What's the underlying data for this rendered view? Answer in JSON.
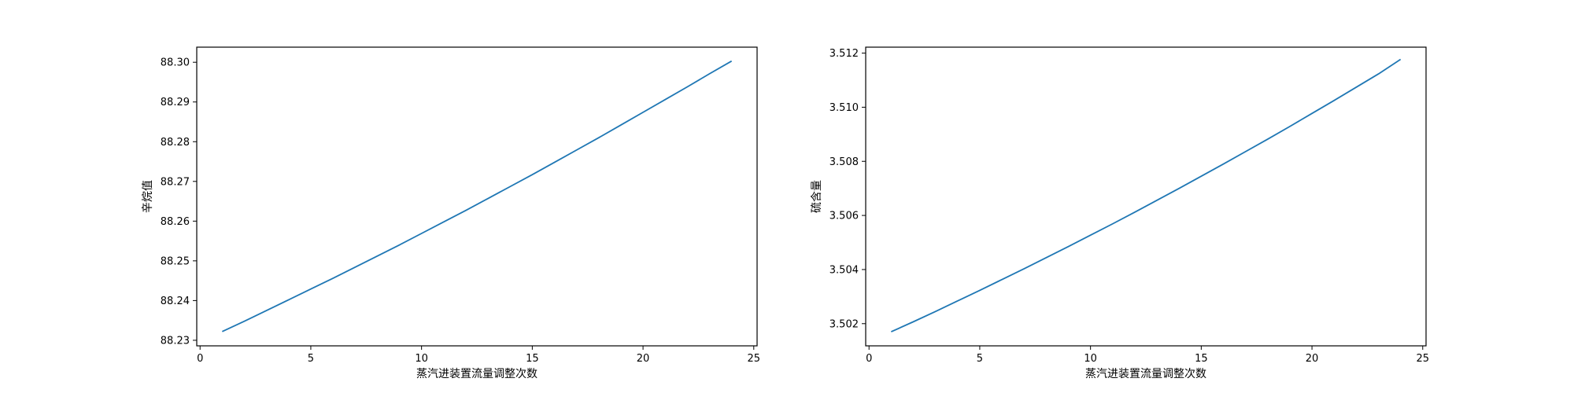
{
  "chart_data": [
    {
      "type": "line",
      "title": "",
      "xlabel": "蒸汽进装置流量调整次数",
      "ylabel": "辛烷值",
      "xlim": [
        -0.15,
        25.15
      ],
      "ylim": [
        88.2286,
        88.3038
      ],
      "xticks": [
        0,
        5,
        10,
        15,
        20,
        25
      ],
      "xtick_labels": [
        "0",
        "5",
        "10",
        "15",
        "20",
        "25"
      ],
      "yticks": [
        88.23,
        88.24,
        88.25,
        88.26,
        88.27,
        88.28,
        88.29,
        88.3
      ],
      "ytick_labels": [
        "88.23",
        "88.24",
        "88.25",
        "88.26",
        "88.27",
        "88.28",
        "88.29",
        "88.30"
      ],
      "grid": false,
      "series": [
        {
          "color": "#1f77b4",
          "x": [
            1,
            2,
            3,
            4,
            5,
            6,
            7,
            8,
            9,
            10,
            11,
            12,
            13,
            14,
            15,
            16,
            17,
            18,
            19,
            20,
            21,
            22,
            23,
            24
          ],
          "values": [
            88.2322,
            88.2348,
            88.2375,
            88.2402,
            88.2429,
            88.2456,
            88.2484,
            88.2512,
            88.254,
            88.2569,
            88.2598,
            88.2627,
            88.2657,
            88.2687,
            88.2717,
            88.2748,
            88.2779,
            88.281,
            88.2842,
            88.2874,
            88.2906,
            88.2938,
            88.2971,
            88.3003
          ]
        }
      ]
    },
    {
      "type": "line",
      "title": "",
      "xlabel": "蒸汽进装置流量调整次数",
      "ylabel": "硫含量",
      "xlim": [
        -0.15,
        25.15
      ],
      "ylim": [
        3.50118,
        3.51222
      ],
      "xticks": [
        0,
        5,
        10,
        15,
        20,
        25
      ],
      "xtick_labels": [
        "0",
        "5",
        "10",
        "15",
        "20",
        "25"
      ],
      "yticks": [
        3.502,
        3.504,
        3.506,
        3.508,
        3.51,
        3.512
      ],
      "ytick_labels": [
        "3.502",
        "3.504",
        "3.506",
        "3.508",
        "3.510",
        "3.512"
      ],
      "grid": false,
      "series": [
        {
          "color": "#1f77b4",
          "x": [
            1,
            2,
            3,
            4,
            5,
            6,
            7,
            8,
            9,
            10,
            11,
            12,
            13,
            14,
            15,
            16,
            17,
            18,
            19,
            20,
            21,
            22,
            23,
            24
          ],
          "values": [
            3.5017,
            3.50207,
            3.50245,
            3.50284,
            3.50323,
            3.50363,
            3.50403,
            3.50444,
            3.50485,
            3.50527,
            3.50569,
            3.50612,
            3.50656,
            3.507,
            3.50745,
            3.5079,
            3.50836,
            3.50882,
            3.50929,
            3.50977,
            3.51025,
            3.51074,
            3.51123,
            3.51177
          ]
        }
      ]
    }
  ]
}
